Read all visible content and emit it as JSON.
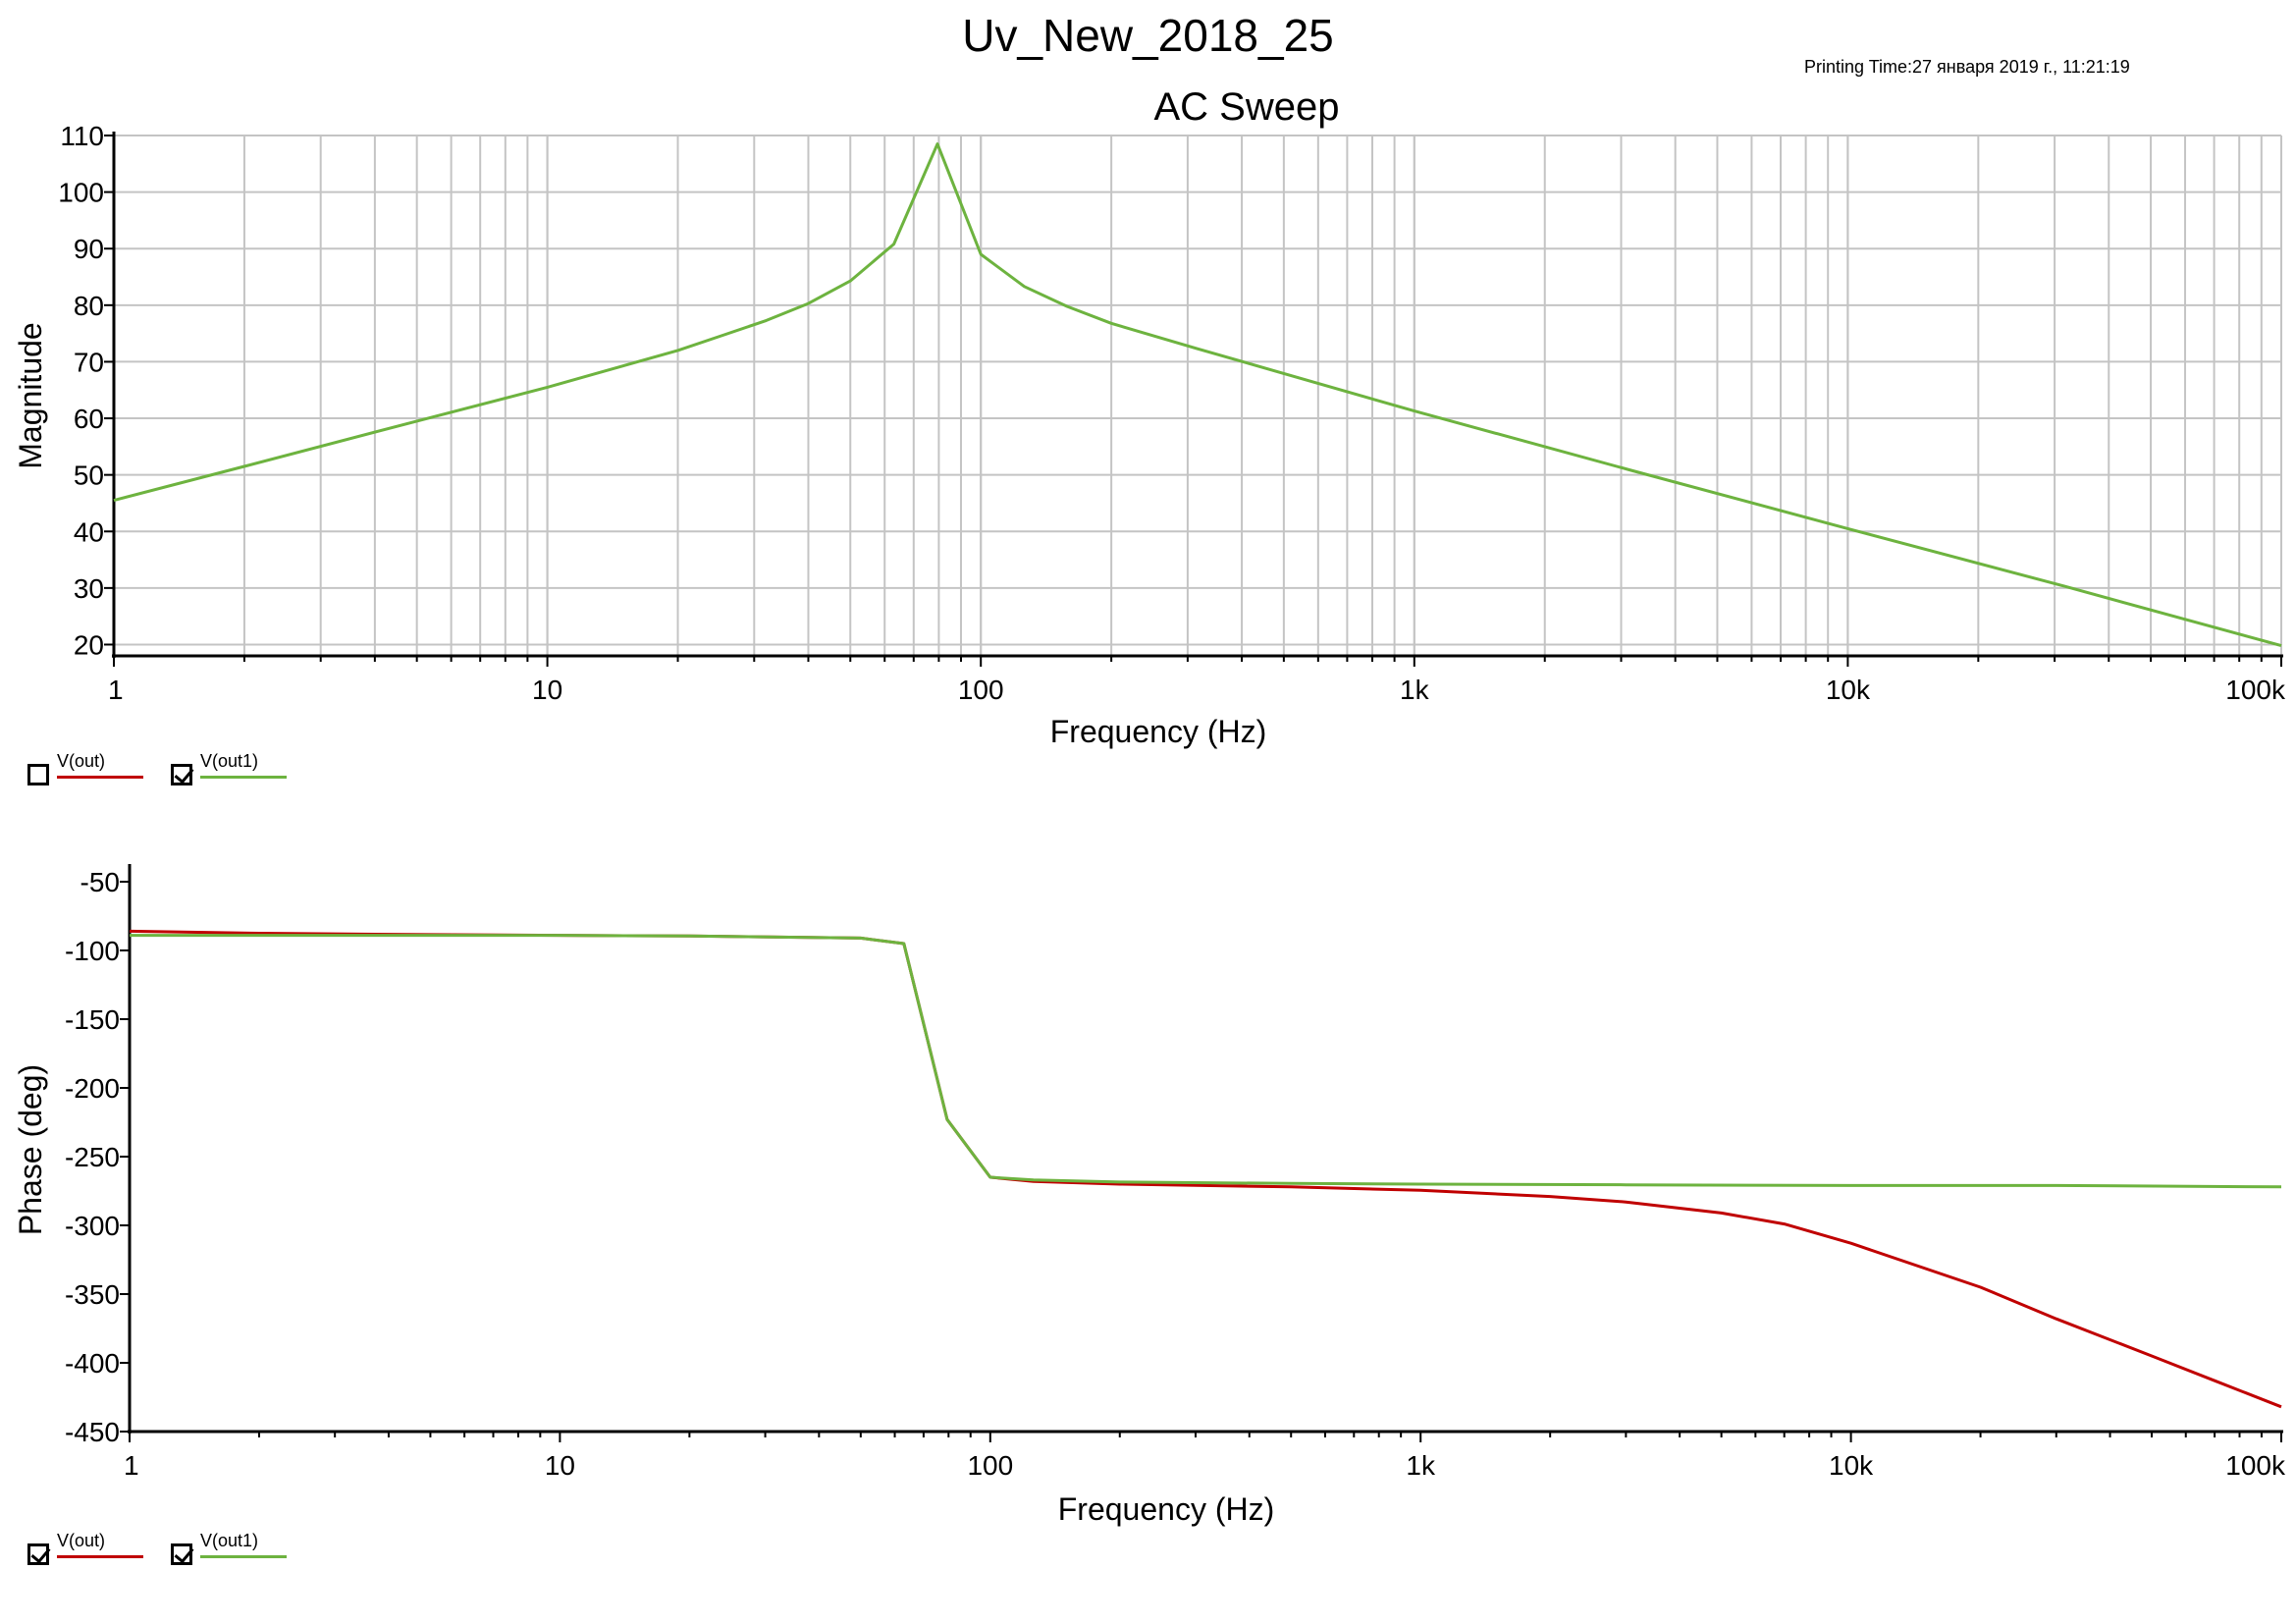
{
  "page": {
    "title": "Uv_New_2018_25",
    "printing_time": "Printing Time:27 января 2019 г., 11:21:19"
  },
  "colors": {
    "grid": "#c4c4c4",
    "axis": "#000000",
    "v_out": "#c00000",
    "v_out1": "#6db33f"
  },
  "chart_data": [
    {
      "type": "line",
      "title": "AC Sweep",
      "xlabel": "Frequency (Hz)",
      "ylabel": "Magnitude",
      "x_scale": "log",
      "xlim": [
        1,
        100000
      ],
      "ylim": [
        18,
        110
      ],
      "x_ticks": [
        1,
        10,
        100,
        1000,
        10000,
        100000
      ],
      "x_tick_labels": [
        "1",
        "10",
        "100",
        "1k",
        "10k",
        "100k"
      ],
      "y_ticks": [
        20,
        30,
        40,
        50,
        60,
        70,
        80,
        90,
        100,
        110
      ],
      "y_tick_labels": [
        "20",
        "30",
        "40",
        "50",
        "60",
        "70",
        "80",
        "90",
        "100",
        "110"
      ],
      "grid": true,
      "legend": "bottom-left",
      "series": [
        {
          "name": "V(out1)",
          "color": "#6db33f",
          "x": [
            1,
            2,
            5,
            10,
            20,
            25,
            32,
            40,
            50,
            63,
            79.4,
            100,
            126,
            158,
            200,
            316,
            1000,
            3162,
            10000,
            31623,
            100000
          ],
          "y": [
            45.5,
            51.5,
            59.5,
            65.5,
            72,
            74.5,
            77.3,
            80.3,
            84.3,
            90.8,
            108.5,
            89,
            83.3,
            79.8,
            76.8,
            72.3,
            61.3,
            50.8,
            40.5,
            30.3,
            19.8
          ]
        }
      ],
      "legend_items": [
        {
          "name": "V(out)",
          "checked": false,
          "color": "#c00000"
        },
        {
          "name": "V(out1)",
          "checked": true,
          "color": "#6db33f"
        }
      ]
    },
    {
      "type": "line",
      "title": "",
      "xlabel": "Frequency (Hz)",
      "ylabel": "Phase (deg)",
      "x_scale": "log",
      "xlim": [
        1,
        100000
      ],
      "ylim": [
        -450,
        -40
      ],
      "x_ticks": [
        1,
        10,
        100,
        1000,
        10000,
        100000
      ],
      "x_tick_labels": [
        "1",
        "10",
        "100",
        "1k",
        "10k",
        "100k"
      ],
      "y_ticks": [
        -450,
        -400,
        -350,
        -300,
        -250,
        -200,
        -150,
        -100,
        -50
      ],
      "y_tick_labels": [
        "-450",
        "-400",
        "-350",
        "-300",
        "-250",
        "-200",
        "-150",
        "-100",
        "-50"
      ],
      "grid": false,
      "legend": "bottom-left",
      "series": [
        {
          "name": "V(out)",
          "color": "#c00000",
          "x": [
            1,
            2,
            5,
            10,
            20,
            50,
            63,
            79.4,
            100,
            126,
            200,
            500,
            1000,
            2000,
            3000,
            5000,
            7000,
            10000,
            20000,
            30000,
            50000,
            70000,
            100000
          ],
          "y": [
            -86,
            -87.5,
            -88.5,
            -89,
            -89.5,
            -91,
            -95,
            -223,
            -265,
            -268,
            -270,
            -272,
            -274.5,
            -279,
            -283,
            -291,
            -299,
            -313,
            -345,
            -368,
            -395,
            -413,
            -432
          ]
        },
        {
          "name": "V(out1)",
          "color": "#6db33f",
          "x": [
            1,
            2,
            5,
            10,
            20,
            50,
            63,
            79.4,
            100,
            126,
            200,
            500,
            1000,
            3000,
            10000,
            30000,
            100000
          ],
          "y": [
            -89,
            -89,
            -89,
            -89,
            -89.5,
            -91,
            -95,
            -223,
            -265,
            -267,
            -268.5,
            -269.5,
            -270,
            -270.5,
            -271,
            -271,
            -272
          ]
        }
      ],
      "legend_items": [
        {
          "name": "V(out)",
          "checked": true,
          "color": "#c00000"
        },
        {
          "name": "V(out1)",
          "checked": true,
          "color": "#6db33f"
        }
      ]
    }
  ]
}
